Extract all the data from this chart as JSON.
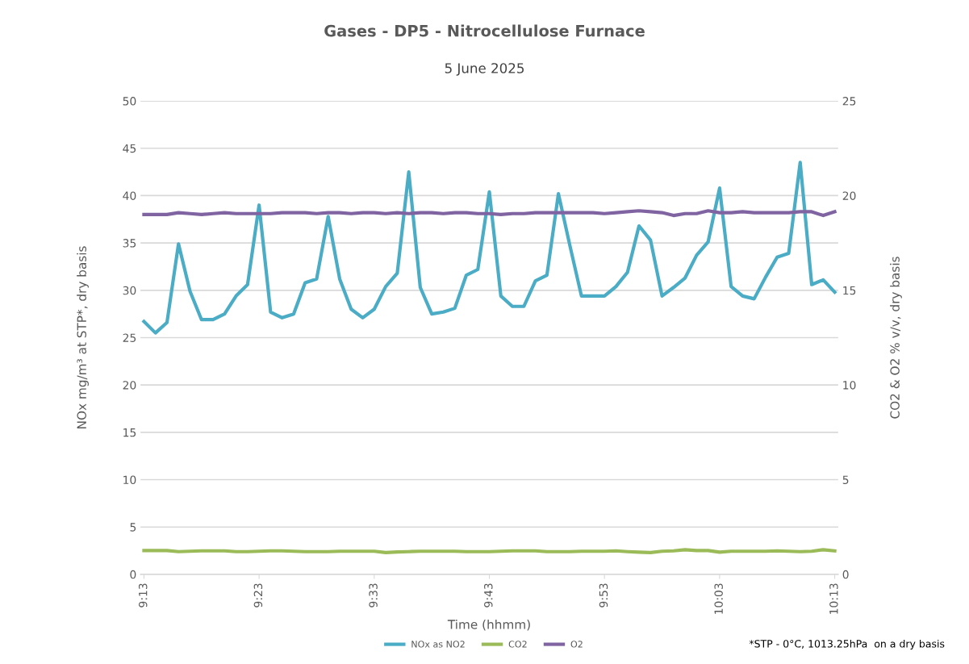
{
  "chart_data": {
    "type": "line",
    "title": "Gases - DP5 - Nitrocellulose Furnace",
    "subtitle": "5 June 2025",
    "xlabel": "Time (hhmm)",
    "ylabel": "NOx mg/m³ at STP*, dry basis",
    "y2label": "CO2 & O2 % v/v, dry basis",
    "categories": [
      "9:13",
      null,
      null,
      null,
      null,
      null,
      null,
      null,
      null,
      null,
      "9:23",
      null,
      null,
      null,
      null,
      null,
      null,
      null,
      null,
      null,
      "9:33",
      null,
      null,
      null,
      null,
      null,
      null,
      null,
      null,
      null,
      "9:43",
      null,
      null,
      null,
      null,
      null,
      null,
      null,
      null,
      null,
      "9:53",
      null,
      null,
      null,
      null,
      null,
      null,
      null,
      null,
      null,
      "10:03",
      null,
      null,
      null,
      null,
      null,
      null,
      null,
      null,
      null,
      "10:13"
    ],
    "series": [
      {
        "name": "NOx as NO2",
        "color": "#4bacc6",
        "values": [
          26.7,
          25.5,
          26.6,
          34.9,
          29.9,
          26.9,
          26.9,
          27.5,
          29.4,
          30.6,
          39.0,
          27.7,
          27.1,
          27.5,
          30.8,
          31.2,
          37.8,
          31.2,
          28.0,
          27.1,
          28.0,
          30.4,
          31.8,
          42.5,
          30.3,
          27.5,
          27.7,
          28.1,
          31.6,
          32.2,
          40.4,
          29.4,
          28.3,
          28.3,
          31.0,
          31.6,
          40.2,
          34.7,
          29.4,
          29.4,
          29.4,
          30.4,
          31.9,
          36.8,
          35.3,
          29.4,
          30.3,
          31.3,
          33.7,
          35.1,
          40.8,
          30.4,
          29.4,
          29.1,
          31.4,
          33.5,
          33.9,
          43.5,
          30.6,
          31.1,
          29.8
        ]
      },
      {
        "name": "CO2",
        "color": "#9bbb59",
        "axis": "y2",
        "values": [
          1.26,
          1.26,
          1.26,
          1.2,
          1.22,
          1.24,
          1.24,
          1.24,
          1.2,
          1.2,
          1.22,
          1.24,
          1.24,
          1.22,
          1.2,
          1.2,
          1.2,
          1.22,
          1.22,
          1.22,
          1.22,
          1.15,
          1.18,
          1.2,
          1.22,
          1.22,
          1.22,
          1.22,
          1.2,
          1.2,
          1.2,
          1.22,
          1.24,
          1.24,
          1.24,
          1.2,
          1.2,
          1.2,
          1.22,
          1.22,
          1.22,
          1.24,
          1.2,
          1.17,
          1.15,
          1.22,
          1.24,
          1.3,
          1.26,
          1.26,
          1.17,
          1.22,
          1.22,
          1.22,
          1.22,
          1.24,
          1.22,
          1.2,
          1.22,
          1.3,
          1.24
        ]
      },
      {
        "name": "O2",
        "color": "#8064a2",
        "axis": "y2",
        "values": [
          19.0,
          19.0,
          19.0,
          19.1,
          19.05,
          19.0,
          19.05,
          19.1,
          19.05,
          19.05,
          19.05,
          19.05,
          19.1,
          19.1,
          19.1,
          19.05,
          19.1,
          19.1,
          19.05,
          19.1,
          19.1,
          19.05,
          19.1,
          19.05,
          19.1,
          19.1,
          19.05,
          19.1,
          19.1,
          19.05,
          19.05,
          19.0,
          19.05,
          19.05,
          19.1,
          19.1,
          19.1,
          19.1,
          19.1,
          19.1,
          19.05,
          19.1,
          19.15,
          19.2,
          19.15,
          19.1,
          18.95,
          19.05,
          19.05,
          19.2,
          19.1,
          19.1,
          19.15,
          19.1,
          19.1,
          19.1,
          19.1,
          19.15,
          19.15,
          18.95,
          19.15
        ]
      }
    ],
    "ylim": [
      0,
      50
    ],
    "yticks": [
      0,
      5,
      10,
      15,
      20,
      25,
      30,
      35,
      40,
      45,
      50
    ],
    "y2lim": [
      0,
      25
    ],
    "y2ticks": [
      0,
      5,
      10,
      15,
      20,
      25
    ],
    "grid": "y",
    "legend": "bottom",
    "marker": "none",
    "line_style": "solid",
    "annotations": [
      "*STP - 0°C, 1013.25hPa  on a dry basis"
    ]
  }
}
